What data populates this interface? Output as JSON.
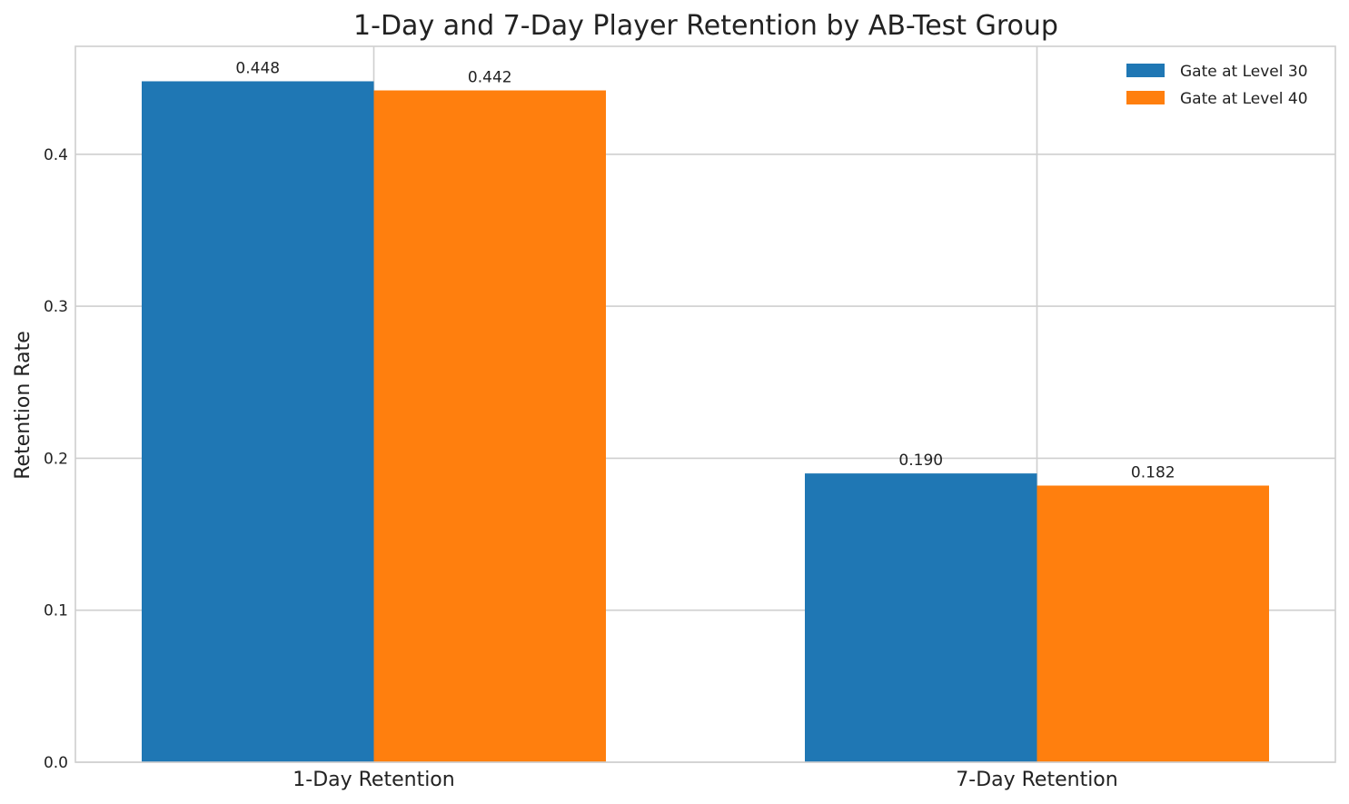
{
  "chart_data": {
    "type": "bar",
    "title": "1-Day and 7-Day Player Retention by AB-Test Group",
    "xlabel": "",
    "ylabel": "Retention Rate",
    "categories": [
      "1-Day Retention",
      "7-Day Retention"
    ],
    "series": [
      {
        "name": "Gate at Level 30",
        "values": [
          0.448,
          0.19
        ],
        "labels": [
          "0.448",
          "0.190"
        ],
        "color": "#1f77b4"
      },
      {
        "name": "Gate at Level 40",
        "values": [
          0.442,
          0.182
        ],
        "labels": [
          "0.442",
          "0.182"
        ],
        "color": "#ff7f0e"
      }
    ],
    "ylim": [
      0,
      0.471
    ],
    "yticks": [
      0.0,
      0.1,
      0.2,
      0.3,
      0.4
    ],
    "ytick_labels": [
      "0.0",
      "0.1",
      "0.2",
      "0.3",
      "0.4"
    ],
    "grid": true,
    "legend_position": "top-right"
  }
}
